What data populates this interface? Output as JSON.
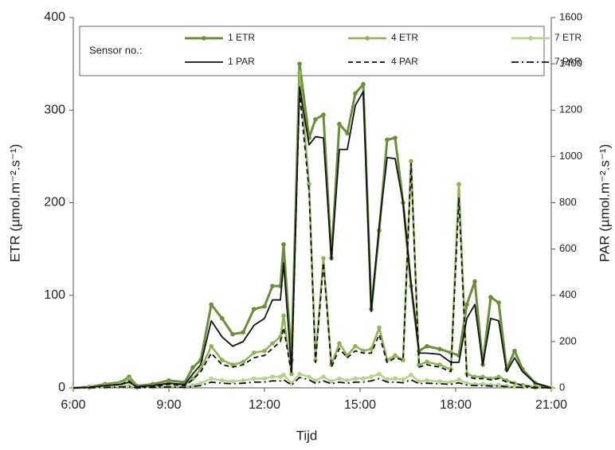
{
  "chart_data": {
    "type": "line",
    "x": [
      6,
      6.5,
      7,
      7.5,
      7.75,
      8,
      8.5,
      9,
      9.5,
      9.75,
      10,
      10.33,
      10.67,
      11,
      11.33,
      11.67,
      12,
      12.25,
      12.5,
      12.6,
      12.85,
      13.1,
      13.4,
      13.6,
      13.85,
      14.1,
      14.35,
      14.6,
      14.85,
      15.1,
      15.35,
      15.6,
      15.85,
      16.1,
      16.35,
      16.6,
      16.85,
      17.1,
      17.5,
      17.85,
      18.1,
      18.35,
      18.6,
      18.85,
      19.1,
      19.35,
      19.6,
      19.85,
      20.1,
      20.5,
      21
    ],
    "xlabel": "Tijd",
    "ylabel": "ETR (µmol.m⁻².s⁻¹)",
    "y2label": "PAR (µmol.m⁻².s⁻¹)",
    "legend_title": "Sensor no.:",
    "xlim": [
      6,
      21
    ],
    "xticks": [
      {
        "value": 6,
        "label": "6:00"
      },
      {
        "value": 9,
        "label": "9:00"
      },
      {
        "value": 12,
        "label": "12:00"
      },
      {
        "value": 15,
        "label": "15:00"
      },
      {
        "value": 18,
        "label": "18:00"
      },
      {
        "value": 21,
        "label": "21:00"
      }
    ],
    "ylim": [
      0,
      400
    ],
    "yticks": [
      0,
      100,
      200,
      300,
      400
    ],
    "y2lim": [
      0,
      1600
    ],
    "y2ticks": [
      0,
      200,
      400,
      600,
      800,
      1000,
      1200,
      1400,
      1600
    ],
    "grid": false,
    "series": [
      {
        "name": "1 ETR",
        "color": "#6b8e3a",
        "dash": "solid",
        "marker": true,
        "width": 3,
        "values": [
          0,
          1,
          4,
          6,
          12,
          2,
          4,
          8,
          6,
          22,
          30,
          90,
          75,
          58,
          60,
          85,
          88,
          110,
          110,
          155,
          30,
          350,
          270,
          290,
          295,
          140,
          285,
          275,
          318,
          328,
          85,
          170,
          268,
          270,
          200,
          110,
          40,
          45,
          42,
          38,
          35,
          90,
          115,
          25,
          98,
          92,
          20,
          40,
          20,
          5,
          0
        ]
      },
      {
        "name": "4 ETR",
        "color": "#8fb255",
        "dash": "solid",
        "marker": true,
        "width": 2.5,
        "values": [
          0,
          1,
          3,
          5,
          10,
          1,
          2,
          5,
          3,
          10,
          20,
          45,
          30,
          25,
          28,
          38,
          40,
          48,
          55,
          78,
          15,
          340,
          220,
          30,
          140,
          25,
          48,
          35,
          45,
          40,
          42,
          65,
          30,
          35,
          30,
          245,
          25,
          28,
          25,
          20,
          220,
          15,
          12,
          12,
          10,
          12,
          8,
          5,
          3,
          1,
          0
        ]
      },
      {
        "name": "7 ETR",
        "color": "#b5d38a",
        "dash": "solid",
        "marker": true,
        "width": 2.5,
        "values": [
          0,
          0,
          1,
          2,
          3,
          0,
          1,
          2,
          1,
          3,
          5,
          10,
          8,
          7,
          8,
          10,
          10,
          12,
          12,
          14,
          5,
          15,
          12,
          8,
          12,
          7,
          10,
          8,
          10,
          10,
          12,
          15,
          9,
          10,
          9,
          14,
          7,
          8,
          7,
          6,
          9,
          5,
          4,
          4,
          3,
          3,
          2,
          1,
          1,
          0,
          0
        ]
      },
      {
        "name": "1 PAR",
        "color": "#111111",
        "dash": "solid",
        "marker": false,
        "width": 1.8,
        "axis": "y2",
        "values": [
          0,
          2,
          10,
          15,
          25,
          5,
          10,
          20,
          15,
          60,
          100,
          290,
          220,
          180,
          200,
          270,
          300,
          380,
          380,
          540,
          80,
          1300,
          1050,
          1085,
          1080,
          555,
          1030,
          1030,
          1220,
          1280,
          330,
          700,
          995,
          990,
          800,
          450,
          150,
          150,
          145,
          110,
          110,
          300,
          360,
          100,
          300,
          290,
          70,
          130,
          70,
          20,
          0
        ]
      },
      {
        "name": "4 PAR",
        "color": "#111111",
        "dash": "dashed",
        "marker": false,
        "width": 1.8,
        "axis": "y2",
        "values": [
          0,
          3,
          10,
          15,
          30,
          3,
          6,
          15,
          10,
          35,
          70,
          150,
          100,
          90,
          100,
          130,
          140,
          170,
          200,
          260,
          60,
          1280,
          850,
          110,
          540,
          90,
          170,
          130,
          160,
          150,
          150,
          230,
          110,
          130,
          120,
          970,
          90,
          100,
          90,
          70,
          820,
          50,
          40,
          40,
          35,
          40,
          25,
          20,
          10,
          3,
          0
        ]
      },
      {
        "name": "7 PAR",
        "color": "#111111",
        "dash": "dashdot",
        "marker": false,
        "width": 1.8,
        "axis": "y2",
        "values": [
          0,
          0,
          2,
          4,
          6,
          0,
          2,
          4,
          2,
          6,
          10,
          25,
          20,
          18,
          20,
          25,
          25,
          30,
          30,
          35,
          12,
          45,
          35,
          20,
          30,
          18,
          25,
          20,
          25,
          25,
          30,
          40,
          25,
          25,
          22,
          35,
          18,
          20,
          18,
          15,
          22,
          12,
          10,
          10,
          8,
          8,
          5,
          3,
          2,
          0,
          0
        ]
      }
    ]
  }
}
